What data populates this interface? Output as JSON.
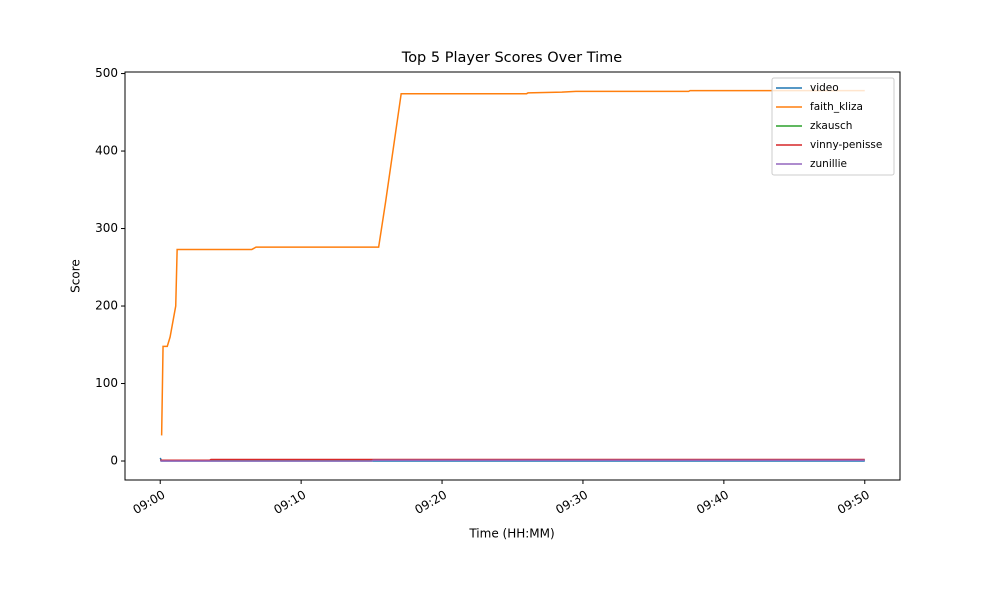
{
  "chart_data": {
    "type": "line",
    "title": "Top 5 Player Scores Over Time",
    "xlabel": "Time (HH:MM)",
    "ylabel": "Score",
    "xlim": [
      -2.5,
      52.5
    ],
    "xticks": [
      {
        "value": 0,
        "label": "09:00"
      },
      {
        "value": 10,
        "label": "09:10"
      },
      {
        "value": 20,
        "label": "09:20"
      },
      {
        "value": 30,
        "label": "09:30"
      },
      {
        "value": 40,
        "label": "09:40"
      },
      {
        "value": 50,
        "label": "09:50"
      }
    ],
    "ylim": [
      -24.5,
      502
    ],
    "yticks": [
      0,
      100,
      200,
      300,
      400,
      500
    ],
    "legend": "upper right",
    "series": [
      {
        "name": "video",
        "color": "#1f77b4",
        "x": [
          0,
          0.1,
          50
        ],
        "values": [
          4,
          0,
          0
        ]
      },
      {
        "name": "faith_kliza",
        "color": "#ff7f0e",
        "x": [
          0.1,
          0.2,
          0.5,
          0.7,
          1.1,
          1.2,
          6.5,
          6.8,
          15.5,
          16.0,
          17.1,
          26,
          26.1,
          28.5,
          29.5,
          37.5,
          37.6,
          50
        ],
        "values": [
          33,
          148,
          148,
          160,
          200,
          273,
          273,
          276,
          276,
          335,
          474,
          474,
          475,
          476,
          477,
          477,
          478,
          478
        ]
      },
      {
        "name": "zkausch",
        "color": "#2ca02c",
        "x": [
          0,
          50
        ],
        "values": [
          1,
          1
        ]
      },
      {
        "name": "vinny-penisse",
        "color": "#d62728",
        "x": [
          0,
          3.5,
          3.6,
          50
        ],
        "values": [
          1,
          1,
          2,
          2
        ]
      },
      {
        "name": "zunillie",
        "color": "#9467bd",
        "x": [
          0,
          15,
          15.1,
          50
        ],
        "values": [
          0,
          0,
          1,
          1
        ]
      }
    ]
  }
}
